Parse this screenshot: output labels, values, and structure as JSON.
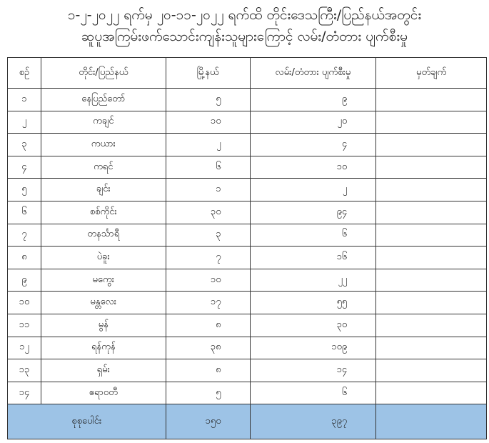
{
  "title": {
    "line1": "၁-၂-၂၀၂၂ ရက်မှ ၂၀-၁၁-၂၀၂၂ ရက်ထိ တိုင်းဒေသကြီး/ပြည်နယ်အတွင်း",
    "line2": "ဆူပူအကြမ်းဖက်သောင်းကျန်းသူများကြောင့် လမ်း/တံတား ပျက်စီးမှု"
  },
  "headers": [
    "စဉ်",
    "တိုင်း/ပြည်နယ်",
    "မြို့နယ်",
    "လမ်း/တံတား ပျက်စီးမှု",
    "မှတ်ချက်"
  ],
  "rows": [
    [
      "၁",
      "နေပြည်တော်",
      "၅",
      "၉",
      ""
    ],
    [
      "၂",
      "ကချင်",
      "၁၀",
      "၂၀",
      ""
    ],
    [
      "၃",
      "ကယား",
      "၂",
      "၄",
      ""
    ],
    [
      "၄",
      "ကရင်",
      "၆",
      "၁၀",
      ""
    ],
    [
      "၅",
      "ချင်း",
      "၁",
      "၂",
      ""
    ],
    [
      "၆",
      "စစ်ကိုင်း",
      "၃၀",
      "၉၄",
      ""
    ],
    [
      "၇",
      "တနင်္သာရီ",
      "၃",
      "၆",
      ""
    ],
    [
      "၈",
      "ပဲခူး",
      "၇",
      "၁၆",
      ""
    ],
    [
      "၉",
      "မကွေး",
      "၁၀",
      "၂၂",
      ""
    ],
    [
      "၁၀",
      "မန္တလေး",
      "၁၇",
      "၅၅",
      ""
    ],
    [
      "၁၁",
      "မွန်",
      "၈",
      "၃၀",
      ""
    ],
    [
      "၁၂",
      "ရန်ကုန်",
      "၃၈",
      "၁၀၉",
      ""
    ],
    [
      "၁၃",
      "ရှမ်း",
      "၈",
      "၁၄",
      ""
    ],
    [
      "၁၄",
      "ဧရာဝတီ",
      "၅",
      "၆",
      ""
    ]
  ],
  "total": {
    "label": "စုစုပေါင်း",
    "townships": "၁၅၀",
    "damage": "၃၉၇",
    "remarks": ""
  },
  "colors": {
    "total_row": "#9dc3e6"
  }
}
